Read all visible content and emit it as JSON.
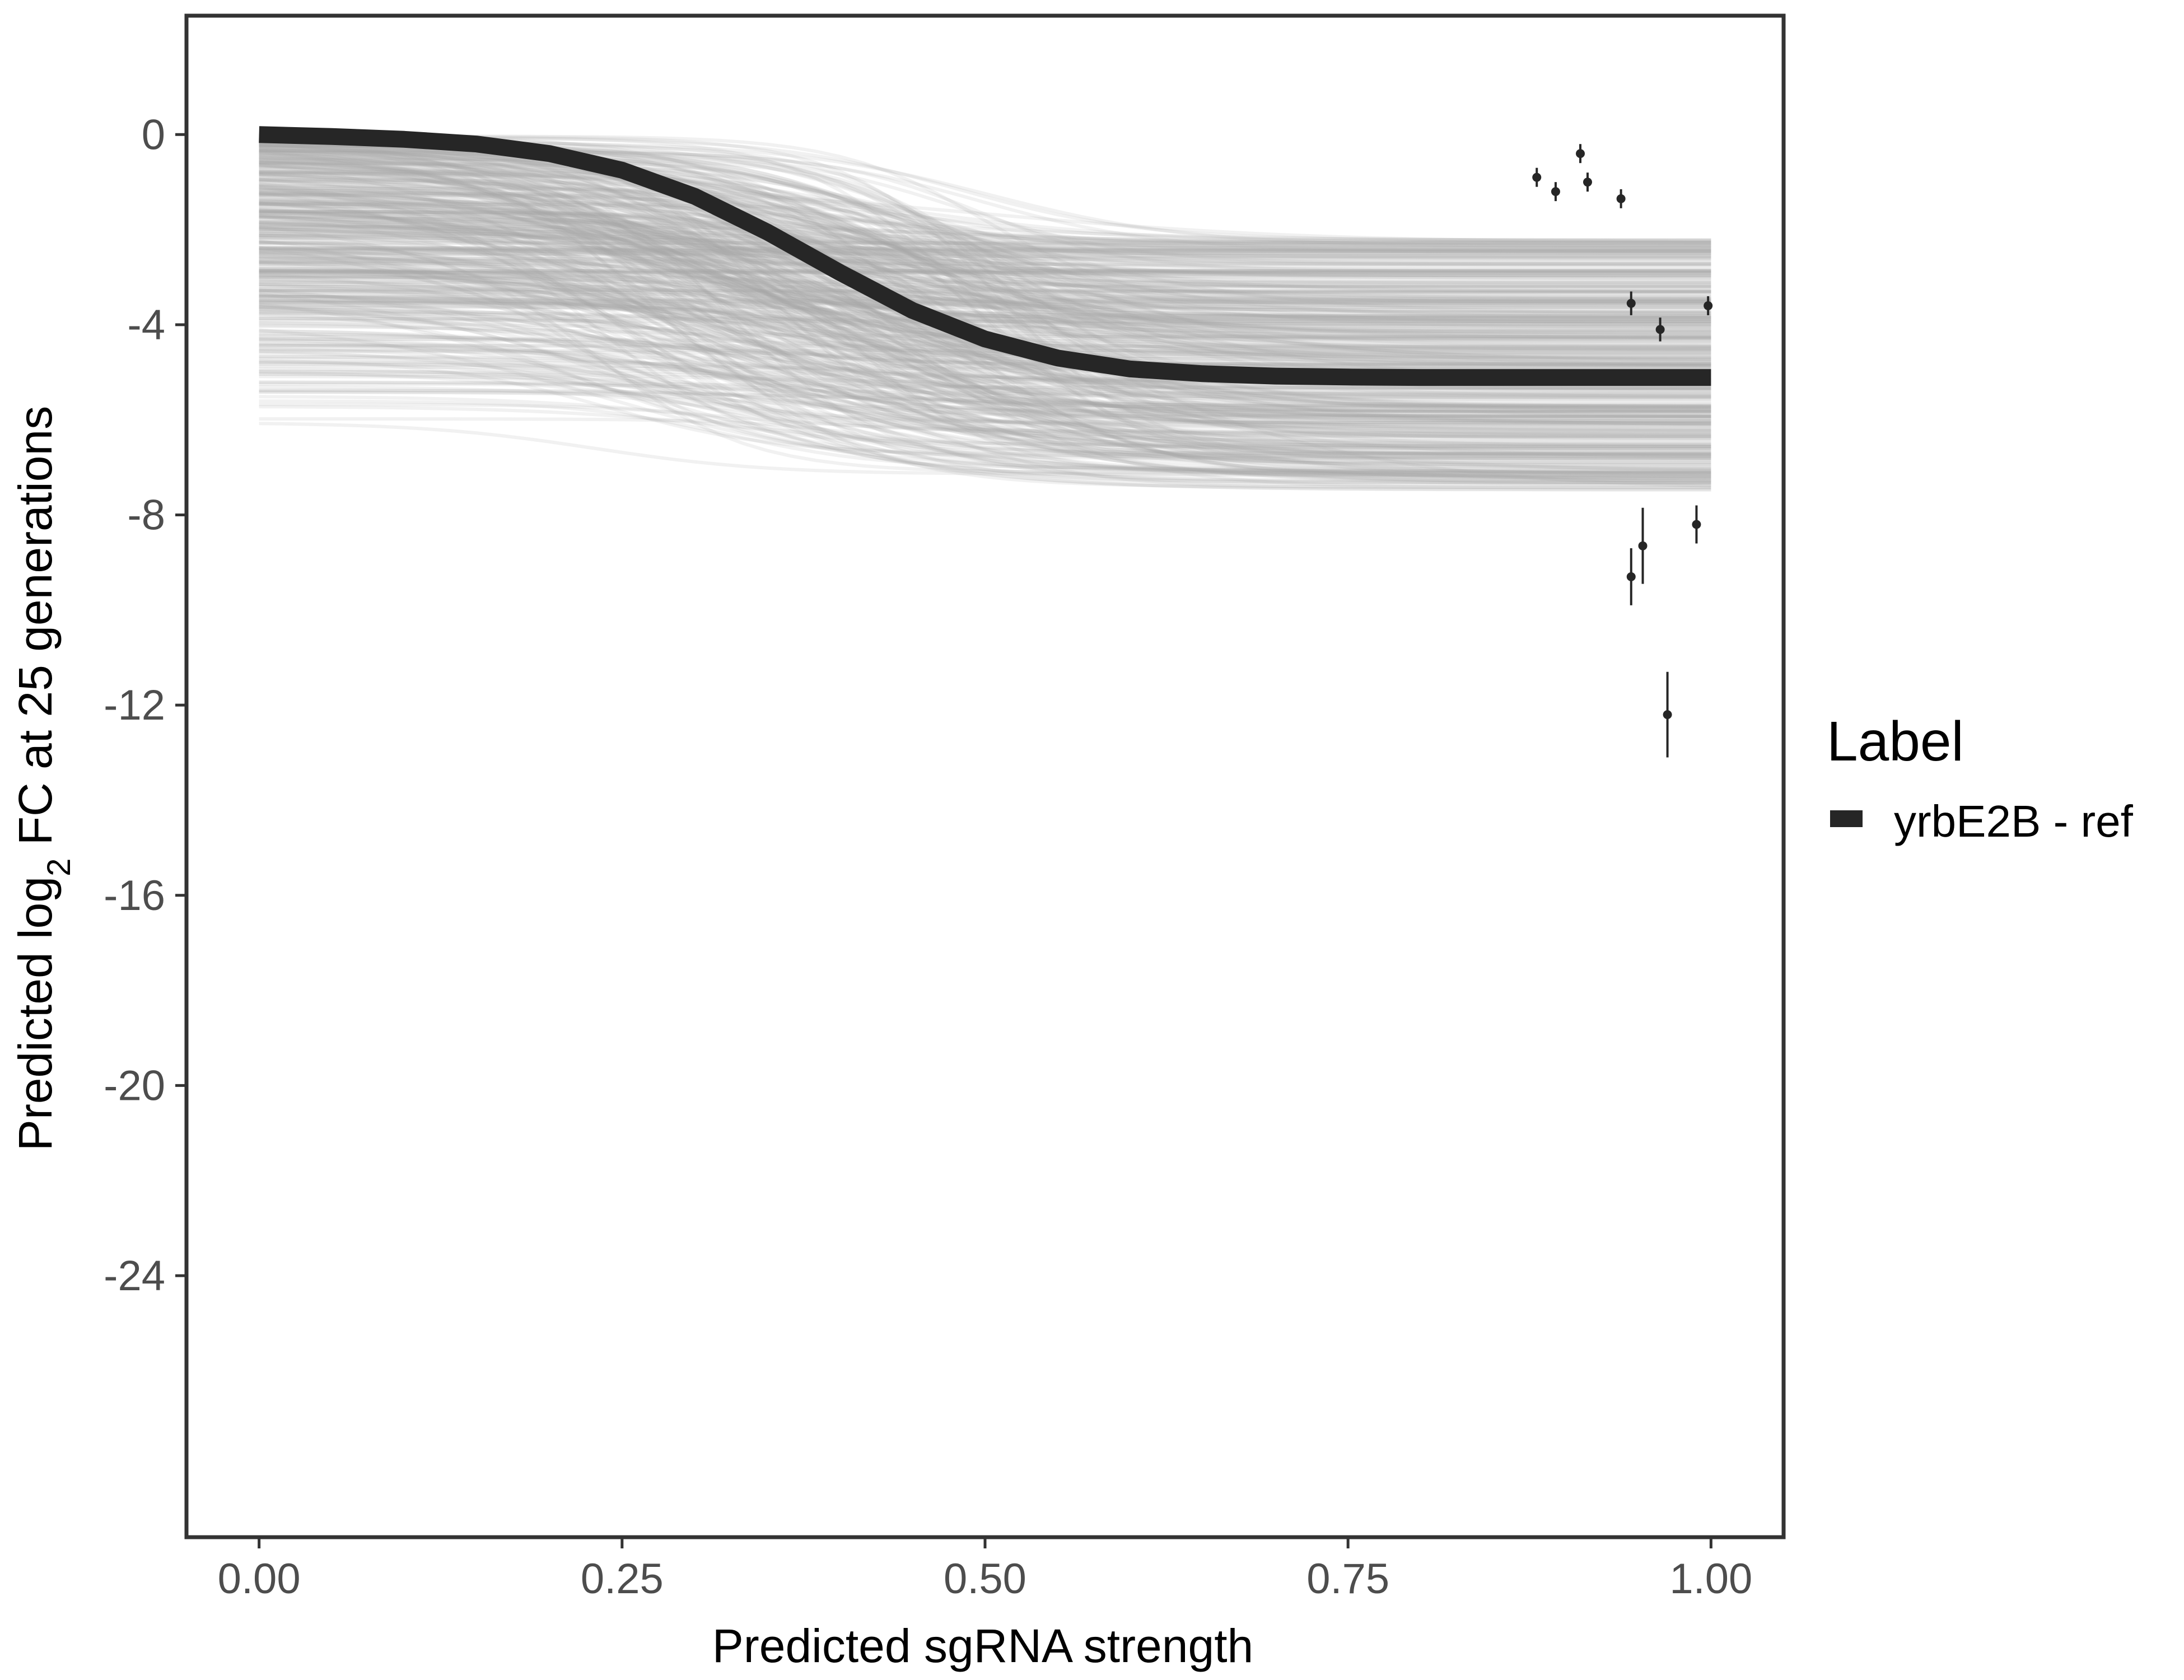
{
  "chart_data": {
    "type": "line",
    "xlabel": "Predicted sgRNA strength",
    "ylabel": {
      "prefix": "Predicted  log",
      "subscript": "2",
      "suffix": " FC at 25 generations"
    },
    "xlim": [
      -0.05,
      1.05
    ],
    "ylim": [
      -29.5,
      2.5
    ],
    "x_ticks": [
      0,
      0.25,
      0.5,
      0.75,
      1
    ],
    "x_tick_labels": [
      "0.00",
      "0.25",
      "0.50",
      "0.75",
      "1.00"
    ],
    "y_ticks": [
      0,
      -4,
      -8,
      -12,
      -16,
      -20,
      -24
    ],
    "y_tick_labels": [
      "0",
      "-4",
      "-8",
      "-12",
      "-16",
      "-20",
      "-24"
    ],
    "grid": false,
    "legend": {
      "title": "Label",
      "position": "right",
      "entries": [
        {
          "label": "yrbE2B - ref",
          "color": "#262626"
        }
      ]
    },
    "series": [
      {
        "name": "yrbE2B - ref",
        "kind": "fit",
        "color": "#262626",
        "x": [
          0,
          0.05,
          0.1,
          0.15,
          0.2,
          0.25,
          0.3,
          0.35,
          0.4,
          0.45,
          0.5,
          0.55,
          0.6,
          0.65,
          0.7,
          0.75,
          0.8,
          0.85,
          0.9,
          0.95,
          1.0
        ],
        "y": [
          0.0,
          -0.04,
          -0.1,
          -0.2,
          -0.4,
          -0.75,
          -1.3,
          -2.05,
          -2.9,
          -3.7,
          -4.3,
          -4.7,
          -4.93,
          -5.03,
          -5.08,
          -5.1,
          -5.11,
          -5.11,
          -5.11,
          -5.11,
          -5.11
        ]
      },
      {
        "kind": "posterior_draws",
        "color": "#a9a9a9",
        "count": 450
      },
      {
        "kind": "observations",
        "color": "#262626",
        "points": [
          {
            "x": 0.88,
            "y": -0.9,
            "err": 0.2
          },
          {
            "x": 0.893,
            "y": -1.2,
            "err": 0.2
          },
          {
            "x": 0.91,
            "y": -0.4,
            "err": 0.2
          },
          {
            "x": 0.915,
            "y": -1.0,
            "err": 0.2
          },
          {
            "x": 0.938,
            "y": -1.35,
            "err": 0.2
          },
          {
            "x": 0.945,
            "y": -3.55,
            "err": 0.25
          },
          {
            "x": 0.945,
            "y": -9.3,
            "err": 0.6
          },
          {
            "x": 0.953,
            "y": -8.65,
            "err": 0.8
          },
          {
            "x": 0.965,
            "y": -4.1,
            "err": 0.25
          },
          {
            "x": 0.97,
            "y": -12.2,
            "err": 0.9
          },
          {
            "x": 0.99,
            "y": -8.2,
            "err": 0.4
          },
          {
            "x": 0.998,
            "y": -3.6,
            "err": 0.2
          }
        ]
      }
    ]
  }
}
